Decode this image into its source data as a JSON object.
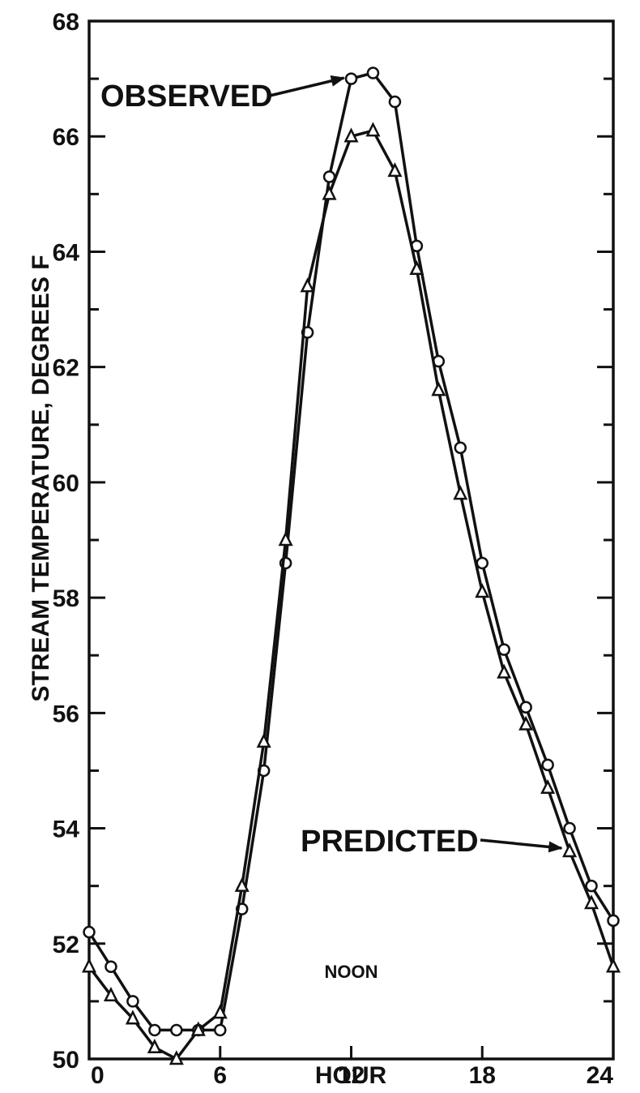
{
  "chart_data": {
    "type": "line",
    "title": "",
    "xlabel": "HOUR",
    "ylabel": "STREAM TEMPERATURE, DEGREES F",
    "xlim": [
      0,
      24
    ],
    "ylim": [
      50,
      68
    ],
    "x_ticks": [
      0,
      6,
      12,
      18,
      24
    ],
    "x_tick_labels": [
      "0",
      "6",
      "12",
      "18",
      "24"
    ],
    "y_ticks": [
      50,
      52,
      54,
      56,
      58,
      60,
      62,
      64,
      66,
      68
    ],
    "y_tick_labels": [
      "50",
      "52",
      "54",
      "56",
      "58",
      "60",
      "62",
      "64",
      "66",
      "68"
    ],
    "grid": false,
    "annotations": [
      {
        "text": "OBSERVED",
        "target_series": "observed",
        "target_x": 12,
        "target_y": 67.0
      },
      {
        "text": "PREDICTED",
        "target_series": "predicted",
        "target_x": 22,
        "target_y": 53.6
      },
      {
        "text": "NOON",
        "x": 12
      }
    ],
    "series": [
      {
        "name": "OBSERVED",
        "marker": "circle",
        "x": [
          0,
          1,
          2,
          3,
          4,
          5,
          6,
          7,
          8,
          9,
          10,
          11,
          12,
          13,
          14,
          15,
          16,
          17,
          18,
          19,
          20,
          21,
          22,
          23,
          24
        ],
        "values": [
          52.2,
          51.6,
          51.0,
          50.5,
          50.5,
          50.5,
          50.5,
          52.6,
          55.0,
          58.6,
          62.6,
          65.3,
          67.0,
          67.1,
          66.6,
          64.1,
          62.1,
          60.6,
          58.6,
          57.1,
          56.1,
          55.1,
          54.0,
          53.0,
          52.4
        ]
      },
      {
        "name": "PREDICTED",
        "marker": "triangle",
        "x": [
          0,
          1,
          2,
          3,
          4,
          5,
          6,
          7,
          8,
          9,
          10,
          11,
          12,
          13,
          14,
          15,
          16,
          17,
          18,
          19,
          20,
          21,
          22,
          23,
          24
        ],
        "values": [
          51.6,
          51.1,
          50.7,
          50.2,
          50.0,
          50.5,
          50.8,
          53.0,
          55.5,
          59.0,
          63.4,
          65.0,
          66.0,
          66.1,
          65.4,
          63.7,
          61.6,
          59.8,
          58.1,
          56.7,
          55.8,
          54.7,
          53.6,
          52.7,
          51.6
        ]
      }
    ]
  }
}
